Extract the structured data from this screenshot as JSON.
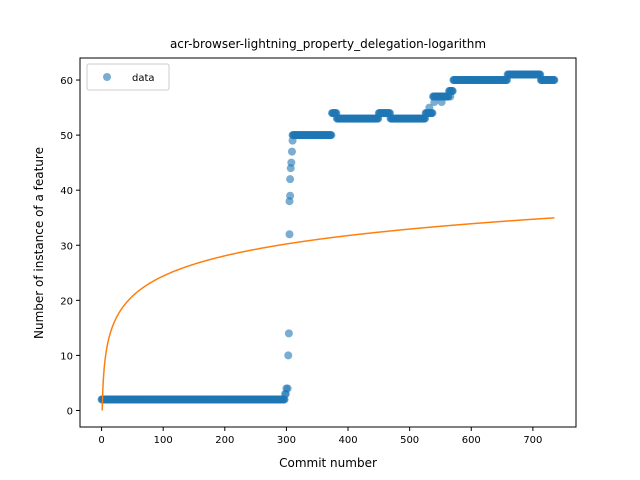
{
  "chart_data": {
    "type": "scatter",
    "title": "acr-browser-lightning_property_delegation-logarithm",
    "xlabel": "Commit number",
    "ylabel": "Number of instance of a feature",
    "xlim": [
      -35,
      770
    ],
    "ylim": [
      -3,
      64
    ],
    "xticks": [
      0,
      100,
      200,
      300,
      400,
      500,
      600,
      700
    ],
    "yticks": [
      0,
      10,
      20,
      30,
      40,
      50,
      60
    ],
    "legend": {
      "position": "top-left",
      "entries": [
        "data"
      ]
    },
    "colors": {
      "data": "#1f77b4",
      "fit": "#ff7f0e"
    },
    "series": [
      {
        "name": "data",
        "kind": "scatter",
        "segments": [
          {
            "x_from": 0,
            "x_to": 296,
            "y": 2
          },
          {
            "x_from": 310,
            "x_to": 373,
            "y": 50
          },
          {
            "x_from": 374,
            "x_to": 381,
            "y": 54
          },
          {
            "x_from": 382,
            "x_to": 449,
            "y": 53
          },
          {
            "x_from": 450,
            "x_to": 468,
            "y": 54
          },
          {
            "x_from": 469,
            "x_to": 525,
            "y": 53
          },
          {
            "x_from": 526,
            "x_to": 537,
            "y": 54
          },
          {
            "x_from": 538,
            "x_to": 546,
            "y": 57
          },
          {
            "x_from": 547,
            "x_to": 563,
            "y": 57
          },
          {
            "x_from": 564,
            "x_to": 570,
            "y": 58
          },
          {
            "x_from": 571,
            "x_to": 658,
            "y": 60
          },
          {
            "x_from": 659,
            "x_to": 712,
            "y": 61
          },
          {
            "x_from": 713,
            "x_to": 735,
            "y": 60
          }
        ],
        "points": [
          {
            "x": 297,
            "y": 2
          },
          {
            "x": 298,
            "y": 3
          },
          {
            "x": 299,
            "y": 3
          },
          {
            "x": 300,
            "y": 4
          },
          {
            "x": 302,
            "y": 4
          },
          {
            "x": 303,
            "y": 10
          },
          {
            "x": 304,
            "y": 14
          },
          {
            "x": 305,
            "y": 32
          },
          {
            "x": 305,
            "y": 38
          },
          {
            "x": 306,
            "y": 39
          },
          {
            "x": 306,
            "y": 42
          },
          {
            "x": 307,
            "y": 44
          },
          {
            "x": 308,
            "y": 45
          },
          {
            "x": 309,
            "y": 47
          },
          {
            "x": 310,
            "y": 49
          },
          {
            "x": 532,
            "y": 55
          },
          {
            "x": 540,
            "y": 56
          },
          {
            "x": 552,
            "y": 56
          },
          {
            "x": 566,
            "y": 57
          }
        ]
      },
      {
        "name": "",
        "kind": "line",
        "model": "logarithmic",
        "params": {
          "a": 5.3,
          "b": 7.35
        },
        "x_range": [
          1,
          735
        ]
      }
    ]
  }
}
